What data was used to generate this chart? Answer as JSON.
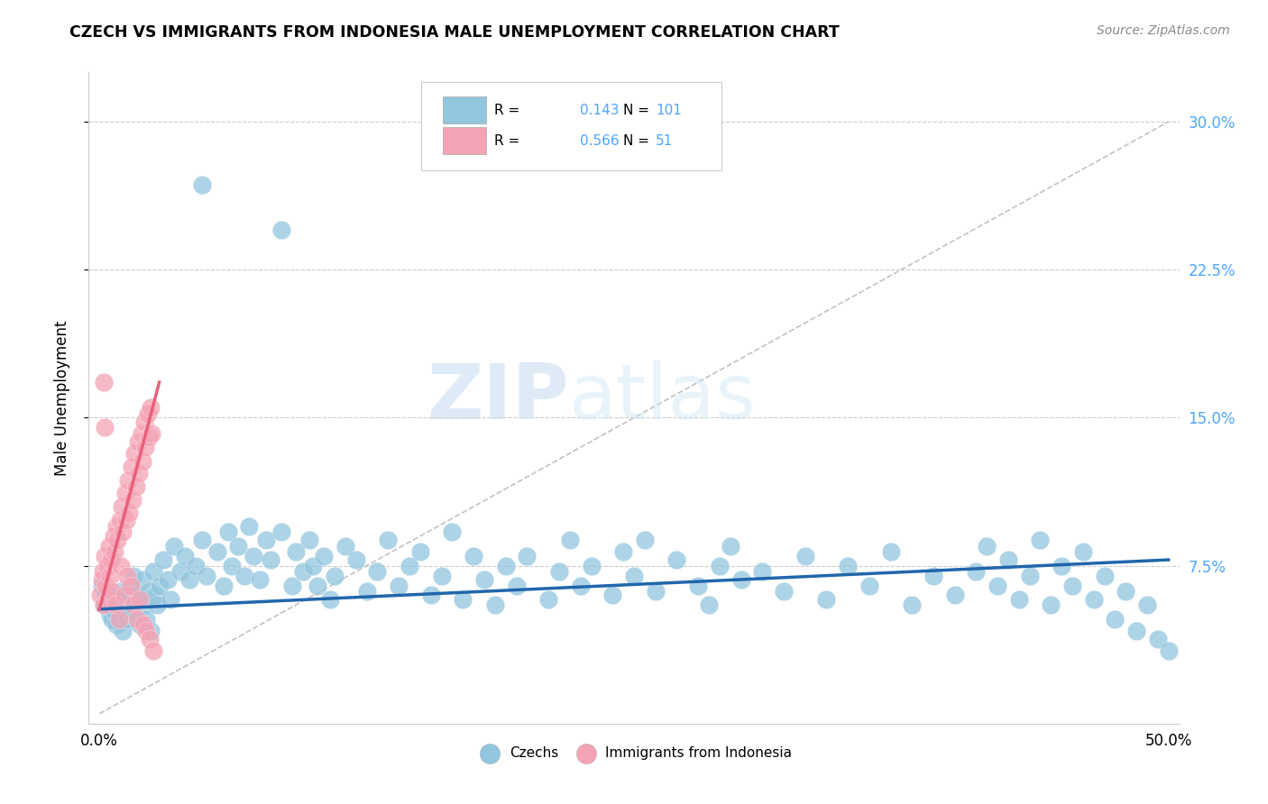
{
  "title": "CZECH VS IMMIGRANTS FROM INDONESIA MALE UNEMPLOYMENT CORRELATION CHART",
  "source": "Source: ZipAtlas.com",
  "ylabel": "Male Unemployment",
  "xlim": [
    -0.005,
    0.505
  ],
  "ylim": [
    -0.005,
    0.325
  ],
  "watermark_zip": "ZIP",
  "watermark_atlas": "atlas",
  "legend_R1": "0.143",
  "legend_N1": "101",
  "legend_R2": "0.566",
  "legend_N2": "51",
  "blue_color": "#92c5de",
  "pink_color": "#f4a3b5",
  "blue_line_color": "#2166ac",
  "pink_line_color": "#e8607a",
  "trendline_dash_color": "#bbbbbb",
  "blue_trend_x0": 0.0,
  "blue_trend_y0": 0.053,
  "blue_trend_x1": 0.5,
  "blue_trend_y1": 0.078,
  "pink_trend_x0": 0.0,
  "pink_trend_y0": 0.053,
  "pink_trend_x1": 0.028,
  "pink_trend_y1": 0.168,
  "czechs_scatter": [
    [
      0.001,
      0.065
    ],
    [
      0.002,
      0.055
    ],
    [
      0.003,
      0.06
    ],
    [
      0.004,
      0.058
    ],
    [
      0.005,
      0.05
    ],
    [
      0.006,
      0.048
    ],
    [
      0.007,
      0.052
    ],
    [
      0.008,
      0.045
    ],
    [
      0.009,
      0.058
    ],
    [
      0.01,
      0.062
    ],
    [
      0.011,
      0.042
    ],
    [
      0.012,
      0.055
    ],
    [
      0.013,
      0.048
    ],
    [
      0.014,
      0.065
    ],
    [
      0.015,
      0.052
    ],
    [
      0.016,
      0.07
    ],
    [
      0.017,
      0.058
    ],
    [
      0.018,
      0.06
    ],
    [
      0.019,
      0.045
    ],
    [
      0.02,
      0.068
    ],
    [
      0.021,
      0.055
    ],
    [
      0.022,
      0.048
    ],
    [
      0.023,
      0.062
    ],
    [
      0.024,
      0.042
    ],
    [
      0.025,
      0.072
    ],
    [
      0.026,
      0.06
    ],
    [
      0.027,
      0.055
    ],
    [
      0.028,
      0.065
    ],
    [
      0.03,
      0.078
    ],
    [
      0.032,
      0.068
    ],
    [
      0.033,
      0.058
    ],
    [
      0.035,
      0.085
    ],
    [
      0.038,
      0.072
    ],
    [
      0.04,
      0.08
    ],
    [
      0.042,
      0.068
    ],
    [
      0.045,
      0.075
    ],
    [
      0.048,
      0.088
    ],
    [
      0.05,
      0.07
    ],
    [
      0.055,
      0.082
    ],
    [
      0.058,
      0.065
    ],
    [
      0.06,
      0.092
    ],
    [
      0.062,
      0.075
    ],
    [
      0.065,
      0.085
    ],
    [
      0.068,
      0.07
    ],
    [
      0.07,
      0.095
    ],
    [
      0.072,
      0.08
    ],
    [
      0.075,
      0.068
    ],
    [
      0.078,
      0.088
    ],
    [
      0.08,
      0.078
    ],
    [
      0.085,
      0.092
    ],
    [
      0.09,
      0.065
    ],
    [
      0.092,
      0.082
    ],
    [
      0.095,
      0.072
    ],
    [
      0.098,
      0.088
    ],
    [
      0.1,
      0.075
    ],
    [
      0.102,
      0.065
    ],
    [
      0.105,
      0.08
    ],
    [
      0.108,
      0.058
    ],
    [
      0.11,
      0.07
    ],
    [
      0.115,
      0.085
    ],
    [
      0.12,
      0.078
    ],
    [
      0.125,
      0.062
    ],
    [
      0.13,
      0.072
    ],
    [
      0.135,
      0.088
    ],
    [
      0.14,
      0.065
    ],
    [
      0.145,
      0.075
    ],
    [
      0.15,
      0.082
    ],
    [
      0.155,
      0.06
    ],
    [
      0.16,
      0.07
    ],
    [
      0.165,
      0.092
    ],
    [
      0.17,
      0.058
    ],
    [
      0.175,
      0.08
    ],
    [
      0.18,
      0.068
    ],
    [
      0.185,
      0.055
    ],
    [
      0.19,
      0.075
    ],
    [
      0.195,
      0.065
    ],
    [
      0.2,
      0.08
    ],
    [
      0.21,
      0.058
    ],
    [
      0.215,
      0.072
    ],
    [
      0.22,
      0.088
    ],
    [
      0.225,
      0.065
    ],
    [
      0.23,
      0.075
    ],
    [
      0.24,
      0.06
    ],
    [
      0.245,
      0.082
    ],
    [
      0.25,
      0.07
    ],
    [
      0.255,
      0.088
    ],
    [
      0.26,
      0.062
    ],
    [
      0.27,
      0.078
    ],
    [
      0.28,
      0.065
    ],
    [
      0.285,
      0.055
    ],
    [
      0.29,
      0.075
    ],
    [
      0.295,
      0.085
    ],
    [
      0.3,
      0.068
    ],
    [
      0.31,
      0.072
    ],
    [
      0.32,
      0.062
    ],
    [
      0.33,
      0.08
    ],
    [
      0.34,
      0.058
    ],
    [
      0.35,
      0.075
    ],
    [
      0.36,
      0.065
    ],
    [
      0.37,
      0.082
    ],
    [
      0.38,
      0.055
    ],
    [
      0.39,
      0.07
    ],
    [
      0.048,
      0.268
    ],
    [
      0.085,
      0.245
    ]
  ],
  "czechs_scatter_right": [
    [
      0.4,
      0.06
    ],
    [
      0.41,
      0.072
    ],
    [
      0.415,
      0.085
    ],
    [
      0.42,
      0.065
    ],
    [
      0.425,
      0.078
    ],
    [
      0.43,
      0.058
    ],
    [
      0.435,
      0.07
    ],
    [
      0.44,
      0.088
    ],
    [
      0.445,
      0.055
    ],
    [
      0.45,
      0.075
    ],
    [
      0.455,
      0.065
    ],
    [
      0.46,
      0.082
    ],
    [
      0.465,
      0.058
    ],
    [
      0.47,
      0.07
    ],
    [
      0.475,
      0.048
    ],
    [
      0.48,
      0.062
    ],
    [
      0.485,
      0.042
    ],
    [
      0.49,
      0.055
    ],
    [
      0.495,
      0.038
    ],
    [
      0.5,
      0.032
    ]
  ],
  "indonesia_scatter": [
    [
      0.0005,
      0.06
    ],
    [
      0.001,
      0.068
    ],
    [
      0.0015,
      0.072
    ],
    [
      0.002,
      0.055
    ],
    [
      0.0025,
      0.08
    ],
    [
      0.003,
      0.065
    ],
    [
      0.0035,
      0.075
    ],
    [
      0.004,
      0.058
    ],
    [
      0.0045,
      0.085
    ],
    [
      0.005,
      0.07
    ],
    [
      0.0055,
      0.078
    ],
    [
      0.006,
      0.062
    ],
    [
      0.0065,
      0.09
    ],
    [
      0.007,
      0.082
    ],
    [
      0.0075,
      0.055
    ],
    [
      0.008,
      0.095
    ],
    [
      0.0085,
      0.088
    ],
    [
      0.009,
      0.048
    ],
    [
      0.0095,
      0.098
    ],
    [
      0.01,
      0.075
    ],
    [
      0.0105,
      0.105
    ],
    [
      0.011,
      0.092
    ],
    [
      0.0115,
      0.06
    ],
    [
      0.012,
      0.112
    ],
    [
      0.0125,
      0.098
    ],
    [
      0.013,
      0.07
    ],
    [
      0.0135,
      0.118
    ],
    [
      0.014,
      0.102
    ],
    [
      0.0145,
      0.065
    ],
    [
      0.015,
      0.125
    ],
    [
      0.0155,
      0.108
    ],
    [
      0.016,
      0.055
    ],
    [
      0.0165,
      0.132
    ],
    [
      0.017,
      0.115
    ],
    [
      0.0175,
      0.048
    ],
    [
      0.018,
      0.138
    ],
    [
      0.0185,
      0.122
    ],
    [
      0.019,
      0.058
    ],
    [
      0.0195,
      0.142
    ],
    [
      0.02,
      0.128
    ],
    [
      0.0205,
      0.045
    ],
    [
      0.021,
      0.148
    ],
    [
      0.0215,
      0.135
    ],
    [
      0.022,
      0.042
    ],
    [
      0.0225,
      0.152
    ],
    [
      0.023,
      0.14
    ],
    [
      0.0235,
      0.038
    ],
    [
      0.024,
      0.155
    ],
    [
      0.0245,
      0.142
    ],
    [
      0.025,
      0.032
    ],
    [
      0.002,
      0.168
    ],
    [
      0.0025,
      0.145
    ]
  ]
}
